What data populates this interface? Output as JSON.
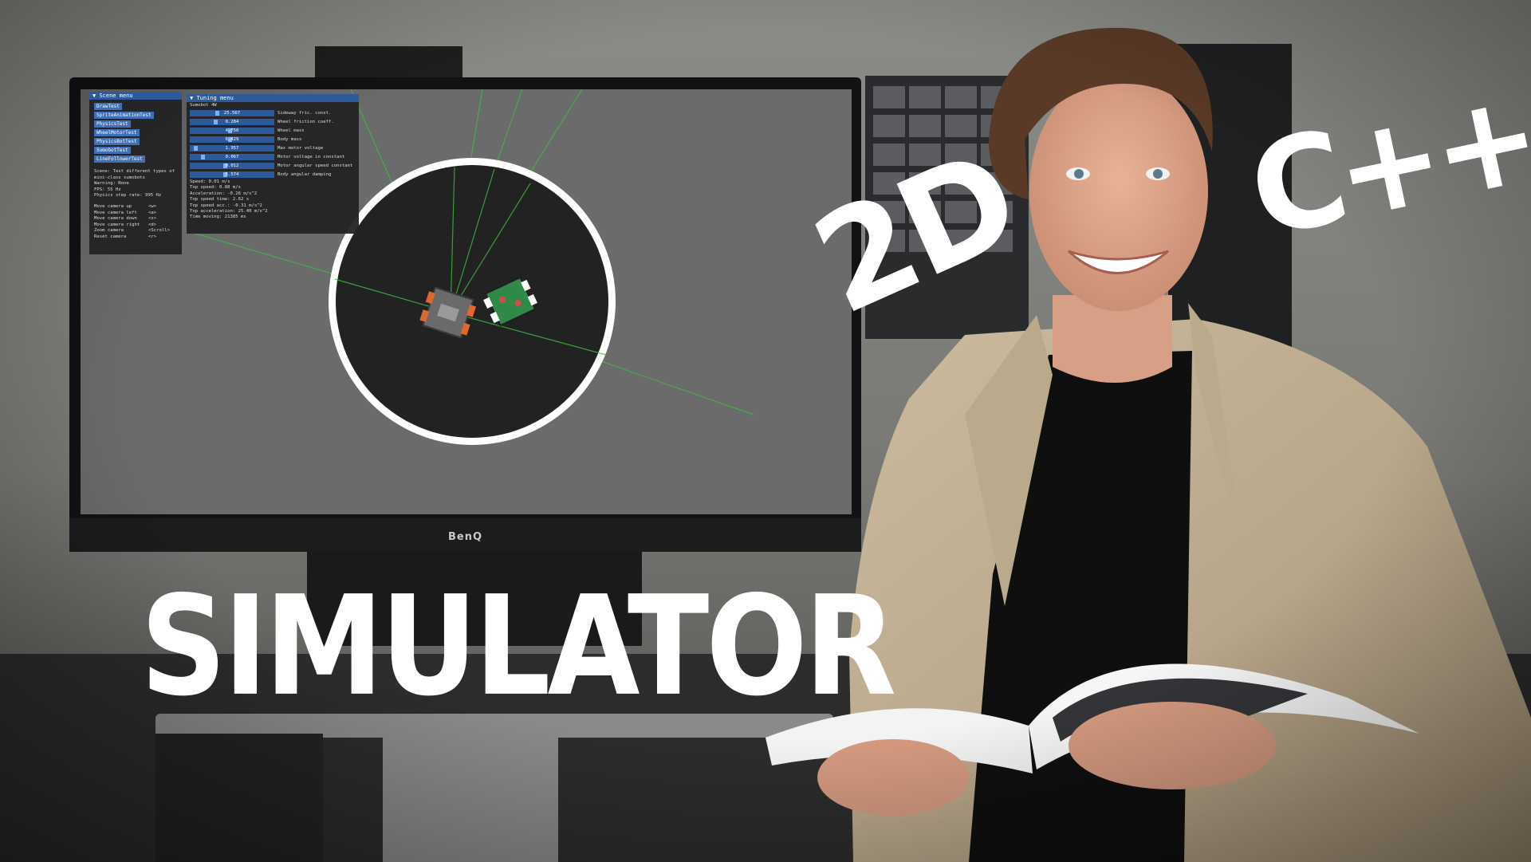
{
  "headline": {
    "main": "SIMULATOR",
    "dimension": "2D",
    "language": "C++"
  },
  "monitor": {
    "brand": "BenQ"
  },
  "scene_menu": {
    "title": "Scene menu",
    "buttons": [
      "DrawTest",
      "SpriteAnimationTest",
      "PhysicsTest",
      "WheelMotorTest",
      "PhysicsBotTest",
      "SumobotTest",
      "LineFollowerTest"
    ],
    "info": [
      "Scene: Test different types of",
      "mini-class sumobots",
      "Warning: None",
      "FPS: 55 Hz",
      "Physics step rate: 995 Hz"
    ],
    "keys": [
      {
        "action": "Move camera up",
        "key": "<w>"
      },
      {
        "action": "Move camera left",
        "key": "<a>"
      },
      {
        "action": "Move camera down",
        "key": "<s>"
      },
      {
        "action": "Move camera right",
        "key": "<d>"
      },
      {
        "action": "Zoom camera",
        "key": "<Scroll>"
      },
      {
        "action": "Reset camera",
        "key": "<r>"
      }
    ]
  },
  "tuning_menu": {
    "title": "Tuning menu",
    "subtitle": "Sumobot 4W",
    "sliders": [
      {
        "value": "25.567",
        "label": "Sideway fric. const.",
        "fraction": 0.3
      },
      {
        "value": "0.284",
        "label": "Wheel friction coeff.",
        "fraction": 0.28
      },
      {
        "value": "4.750",
        "label": "Wheel mass",
        "fraction": 0.45
      },
      {
        "value": "6.429",
        "label": "Body mass",
        "fraction": 0.45
      },
      {
        "value": "1.957",
        "label": "Max motor voltage",
        "fraction": 0.05
      },
      {
        "value": "0.067",
        "label": "Motor voltage in constant",
        "fraction": 0.13
      },
      {
        "value": "0.012",
        "label": "Motor angular speed constant",
        "fraction": 0.4
      },
      {
        "value": "5.574",
        "label": "Body angular damping",
        "fraction": 0.4
      }
    ],
    "stats": [
      "Speed: 0.01 m/s",
      "Top speed: 0.88 m/s",
      "Acceleration: -0.26 m/s^2",
      "Top speed time: 2.62 s",
      "Top speed acc.: -0.31 m/s^2",
      "Top acceleration: 25.40 m/s^2",
      "Time moving: 21385 ms"
    ]
  },
  "colors": {
    "panel_header": "#2d5a9a",
    "button": "#3f6fb5",
    "viewport": "#6b6b6b",
    "arena": "#222222",
    "arena_ring": "#ffffff",
    "debug_line": "#3fbf3f"
  }
}
